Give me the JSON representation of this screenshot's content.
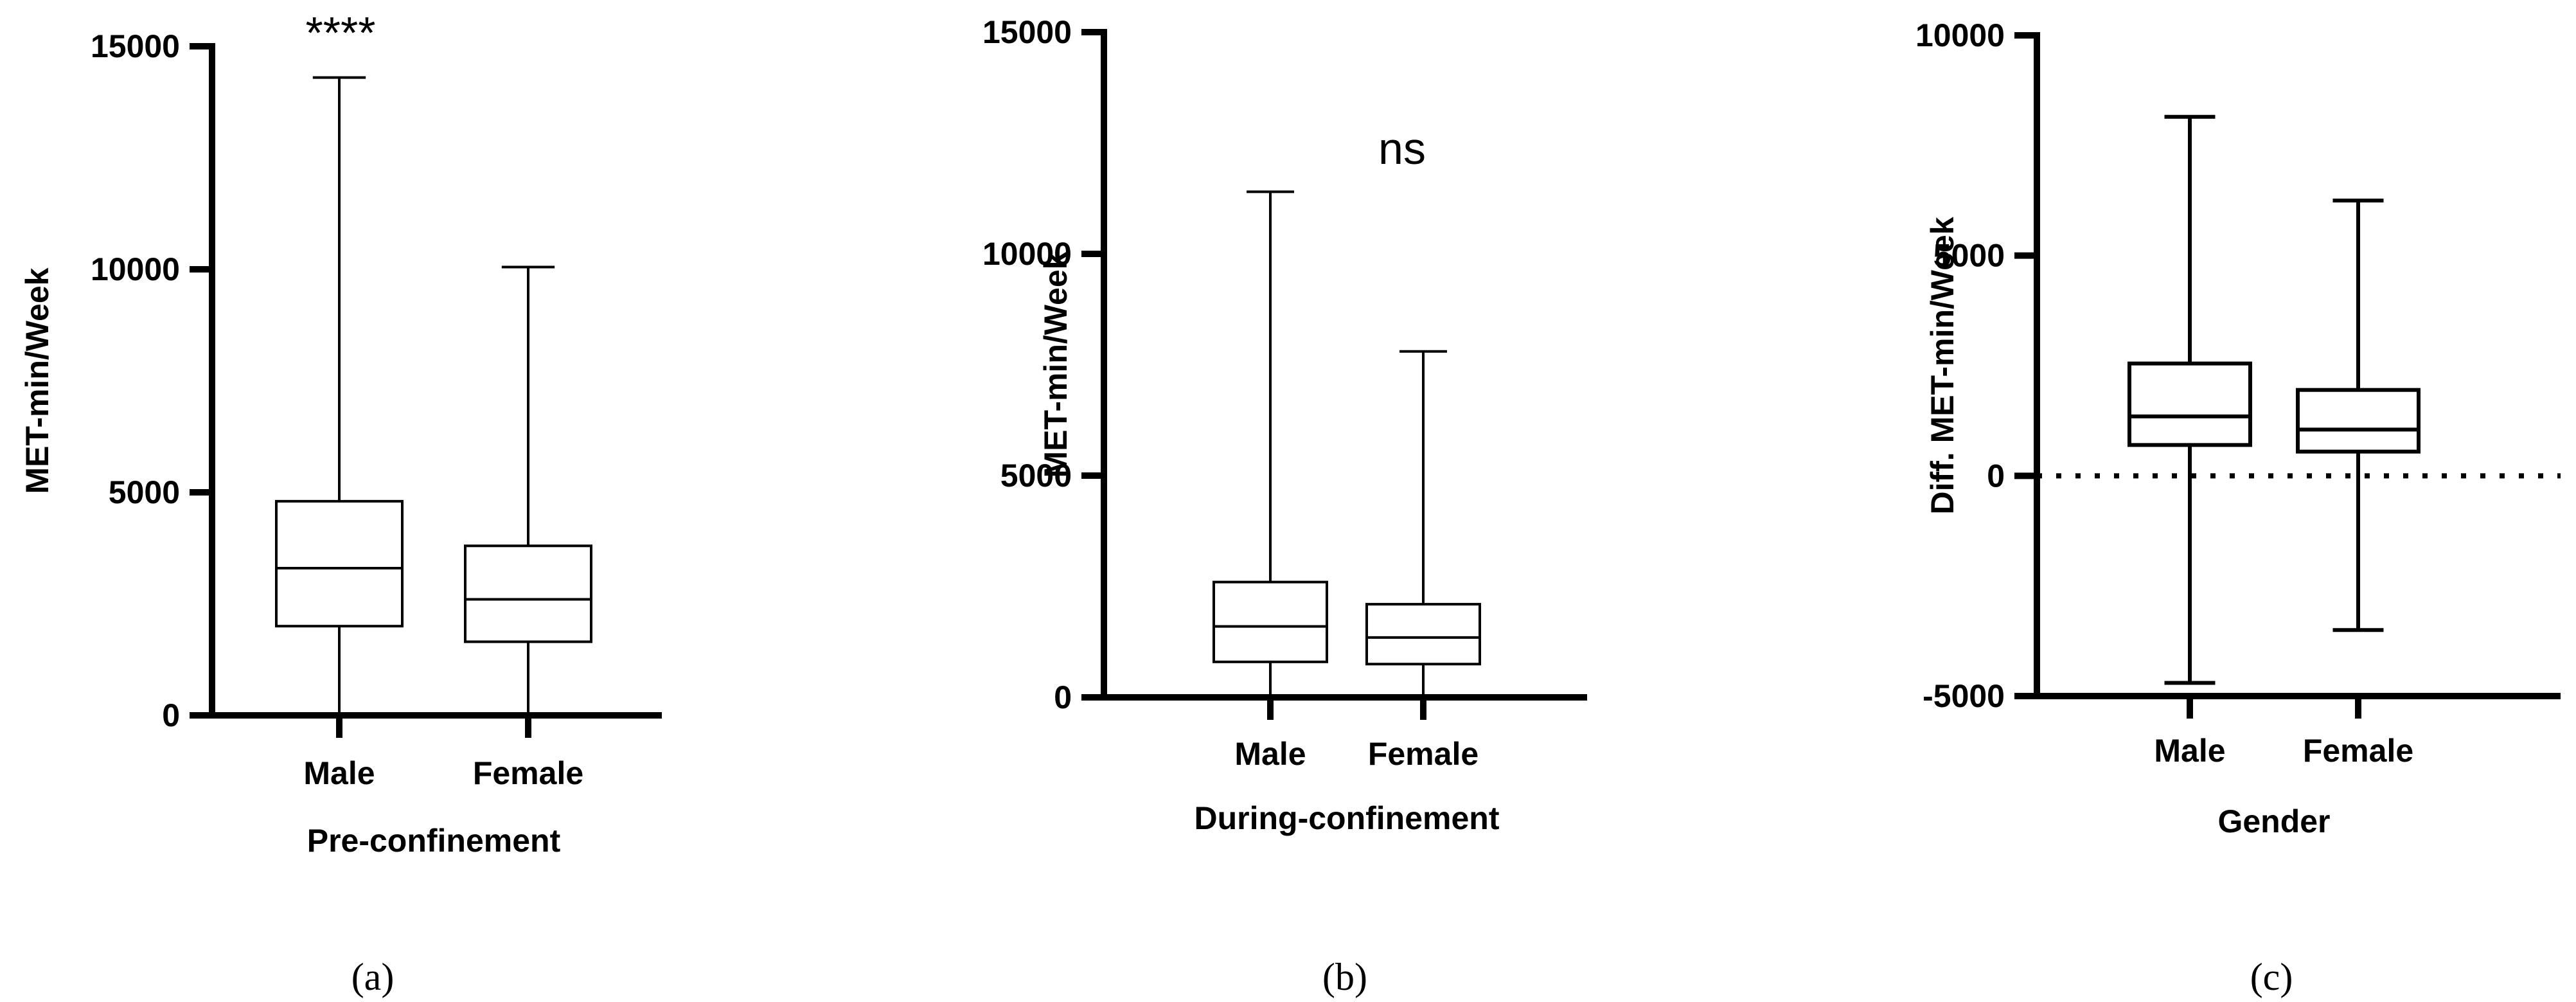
{
  "chart_data": [
    {
      "type": "box",
      "panel_label": "(a)",
      "ylabel": "MET-min/Week",
      "xlabel": "Pre-confinement",
      "yticks": [
        0,
        5000,
        10000,
        15000
      ],
      "ytick_labels": [
        "0",
        "5000",
        "10000",
        "15000"
      ],
      "ylim": [
        0,
        15000
      ],
      "categories": [
        "Male",
        "Female"
      ],
      "boxes": [
        {
          "name": "Male",
          "min": 0,
          "q1": 2000,
          "median": 3300,
          "q3": 4800,
          "max": 14300
        },
        {
          "name": "Female",
          "min": 0,
          "q1": 1650,
          "median": 2600,
          "q3": 3800,
          "max": 10050
        }
      ],
      "annotations": [
        "****",
        ""
      ],
      "zero_line": false
    },
    {
      "type": "box",
      "panel_label": "(b)",
      "ylabel": "MET-min/Week",
      "xlabel": "During-confinement",
      "yticks": [
        0,
        5000,
        10000,
        15000
      ],
      "ytick_labels": [
        "0",
        "5000",
        "10000",
        "15000"
      ],
      "ylim": [
        0,
        15000
      ],
      "categories": [
        "Male",
        "Female"
      ],
      "boxes": [
        {
          "name": "Male",
          "min": 0,
          "q1": 800,
          "median": 1600,
          "q3": 2600,
          "max": 11400
        },
        {
          "name": "Female",
          "min": 0,
          "q1": 750,
          "median": 1350,
          "q3": 2100,
          "max": 7800
        }
      ],
      "annotations": [
        "ns"
      ],
      "zero_line": false
    },
    {
      "type": "box",
      "panel_label": "(c)",
      "ylabel": "Diff. MET-min/Week",
      "xlabel": "Gender",
      "yticks": [
        -5000,
        0,
        5000,
        10000
      ],
      "ytick_labels": [
        "-5000",
        "0",
        "5000",
        "10000"
      ],
      "ylim": [
        -5000,
        10000
      ],
      "categories": [
        "Male",
        "Female"
      ],
      "boxes": [
        {
          "name": "Male",
          "min": -4700,
          "q1": 700,
          "median": 1350,
          "q3": 2550,
          "max": 8150
        },
        {
          "name": "Female",
          "min": -3500,
          "q1": 550,
          "median": 1050,
          "q3": 1950,
          "max": 6250
        }
      ],
      "annotations": [],
      "zero_line": true
    }
  ]
}
